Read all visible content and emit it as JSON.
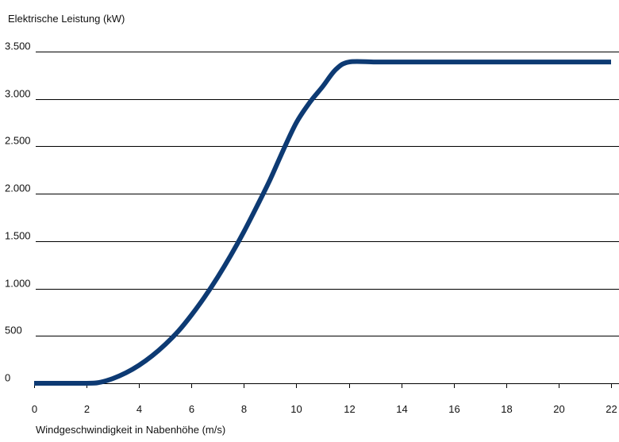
{
  "chart_data": {
    "type": "line",
    "title": "",
    "ylabel": "Elektrische Leistung (kW)",
    "xlabel": "Windgeschwindigkeit in Nabenhöhe (m/s)",
    "xlim": [
      0,
      22
    ],
    "ylim": [
      0,
      3500
    ],
    "x_ticks": [
      0,
      2,
      4,
      6,
      8,
      10,
      12,
      14,
      16,
      18,
      20,
      22
    ],
    "x_tick_labels": [
      "0",
      "2",
      "4",
      "6",
      "8",
      "10",
      "12",
      "14",
      "16",
      "18",
      "20",
      "22"
    ],
    "y_ticks": [
      0,
      500,
      1000,
      1500,
      2000,
      2500,
      3000,
      3500
    ],
    "y_tick_labels": [
      "0",
      "500",
      "1.000",
      "1.500",
      "2.000",
      "2.500",
      "3.000",
      "3.500"
    ],
    "grid": "horizontal",
    "legend": "none",
    "colors": {
      "series": "#0d3a73",
      "grid": "#000000",
      "axis": "#000000"
    },
    "series": [
      {
        "x": [
          0,
          2,
          2.5,
          3,
          3.5,
          4,
          4.5,
          5,
          5.5,
          6,
          6.5,
          7,
          7.5,
          8,
          8.5,
          9,
          9.5,
          10,
          10.5,
          11,
          11.5,
          12,
          13,
          14,
          15,
          16,
          17,
          18,
          19,
          20,
          21,
          22
        ],
        "y": [
          0,
          0,
          10,
          50,
          110,
          190,
          290,
          410,
          550,
          720,
          910,
          1120,
          1350,
          1600,
          1870,
          2150,
          2460,
          2750,
          2960,
          3130,
          3310,
          3390,
          3390,
          3390,
          3390,
          3390,
          3390,
          3390,
          3390,
          3390,
          3390,
          3390
        ]
      }
    ]
  }
}
